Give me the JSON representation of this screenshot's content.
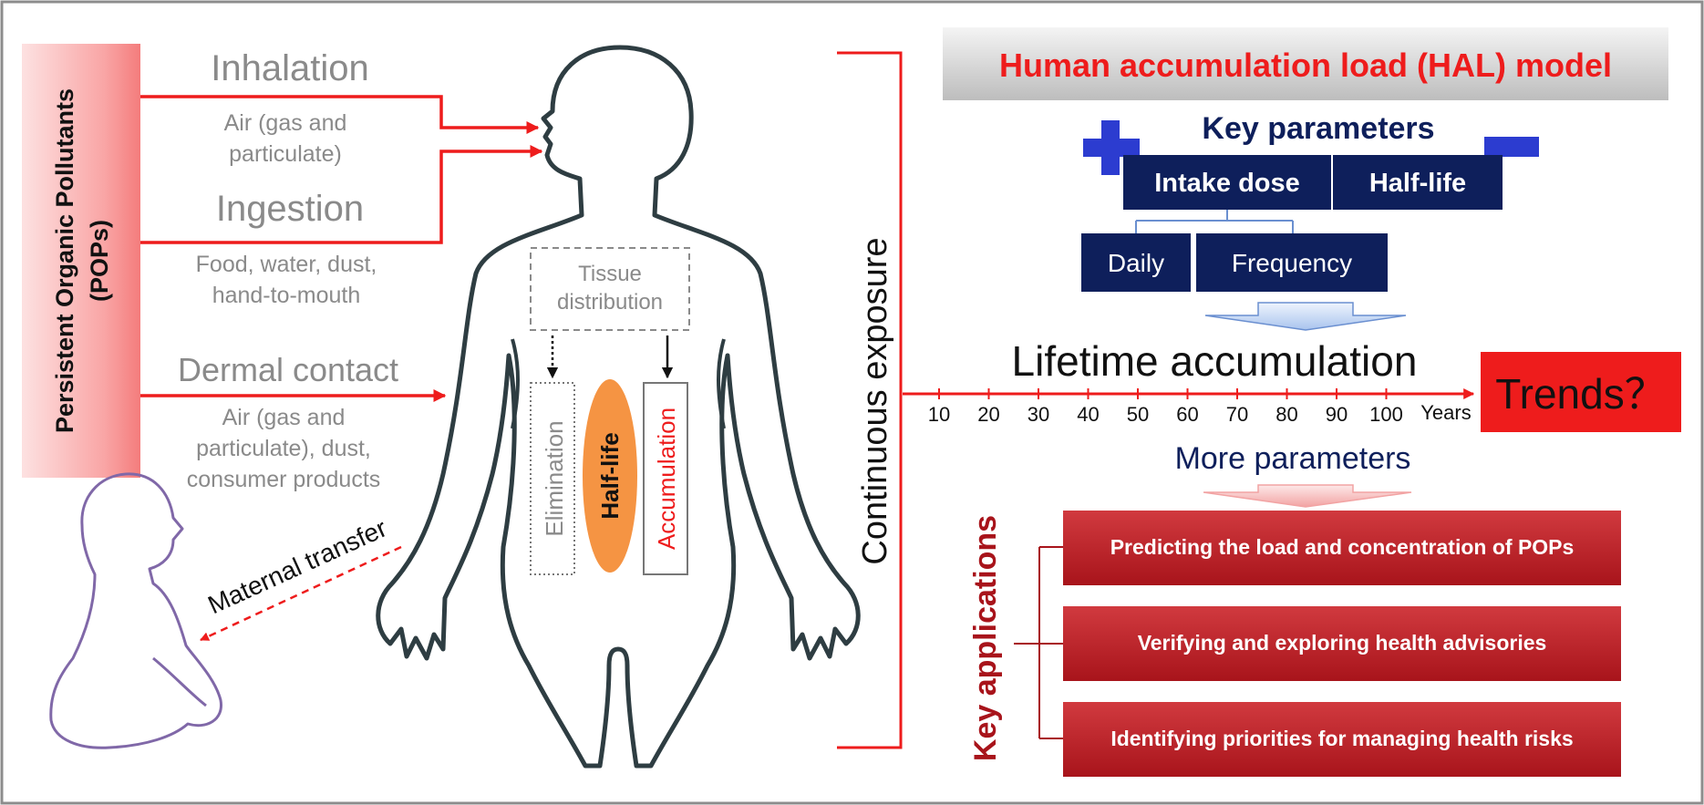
{
  "pops": {
    "label_line1": "Persistent Organic Pollutants",
    "label_line2": "(POPs)"
  },
  "routes": {
    "inhalation": {
      "title": "Inhalation",
      "desc": [
        "Air (gas and",
        "particulate)"
      ]
    },
    "ingestion": {
      "title": "Ingestion",
      "desc": [
        "Food, water, dust,",
        "hand-to-mouth"
      ]
    },
    "dermal": {
      "title": "Dermal contact",
      "desc": [
        "Air (gas and",
        "particulate), dust,",
        "consumer products"
      ]
    }
  },
  "maternal_transfer": "Maternal transfer",
  "body": {
    "tissue_distribution": [
      "Tissue",
      "distribution"
    ],
    "elimination": "Elimination",
    "half_life": "Half-life",
    "accumulation": "Accumulation"
  },
  "continuous_exposure": "Continuous exposure",
  "hal_model": {
    "title": "Human accumulation load (HAL) model",
    "key_parameters": "Key parameters",
    "intake_dose": "Intake dose",
    "half_life": "Half-life",
    "daily": "Daily",
    "frequency": "Frequency"
  },
  "lifetime": {
    "title": "Lifetime accumulation",
    "ticks": [
      "10",
      "20",
      "30",
      "40",
      "50",
      "60",
      "70",
      "80",
      "90",
      "100"
    ],
    "unit": "Years",
    "trends": "Trends？"
  },
  "more_parameters": "More parameters",
  "key_applications": {
    "label": "Key applications",
    "items": [
      "Predicting the load and concentration of POPs",
      "Verifying and exploring health advisories",
      "Identifying priorities for managing health risks"
    ]
  },
  "colors": {
    "red": "#ee1c1c",
    "navy": "#0e1f5b",
    "dark_red": "#a8141b",
    "app_red": "#c0272d",
    "orange": "#f59443",
    "body_outline": "#2e3d42",
    "baby_outline": "#8068a8",
    "gray_text": "#8a8a8a"
  }
}
